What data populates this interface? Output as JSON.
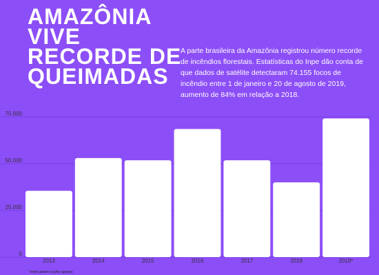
{
  "header": {
    "title_lines": [
      "AMAZÔNIA",
      "VIVE",
      "RECORDE DE",
      "QUEIMADAS"
    ],
    "intro": "A parte brasileira da Amazônia registrou número recorde de incêndios florestais. Estatísticas do Inpe dão conta de que dados de satélite detectaram 74.155 focos de incêndio entre 1 de janeiro e 20 de agosto de 2019, aumento de 84% em relação a 2018."
  },
  "footnote": "*entre janeiro e julho apenas",
  "colors": {
    "background": "#8c4ef7",
    "bar": "#ffffff",
    "gridline": "#7a3fe0"
  },
  "chart_data": {
    "type": "bar",
    "categories": [
      "2013",
      "2014",
      "2015",
      "2016",
      "2017",
      "2018",
      "2019*"
    ],
    "values": [
      35500,
      53000,
      51800,
      68500,
      51800,
      40000,
      74155
    ],
    "xlabel": "",
    "ylabel": "",
    "ylim": [
      0,
      75000
    ],
    "yticks": [
      0,
      25000,
      50000,
      75000
    ],
    "ytick_labels": [
      "0",
      "25.000",
      "50.000",
      "75.000"
    ],
    "grid": true
  }
}
